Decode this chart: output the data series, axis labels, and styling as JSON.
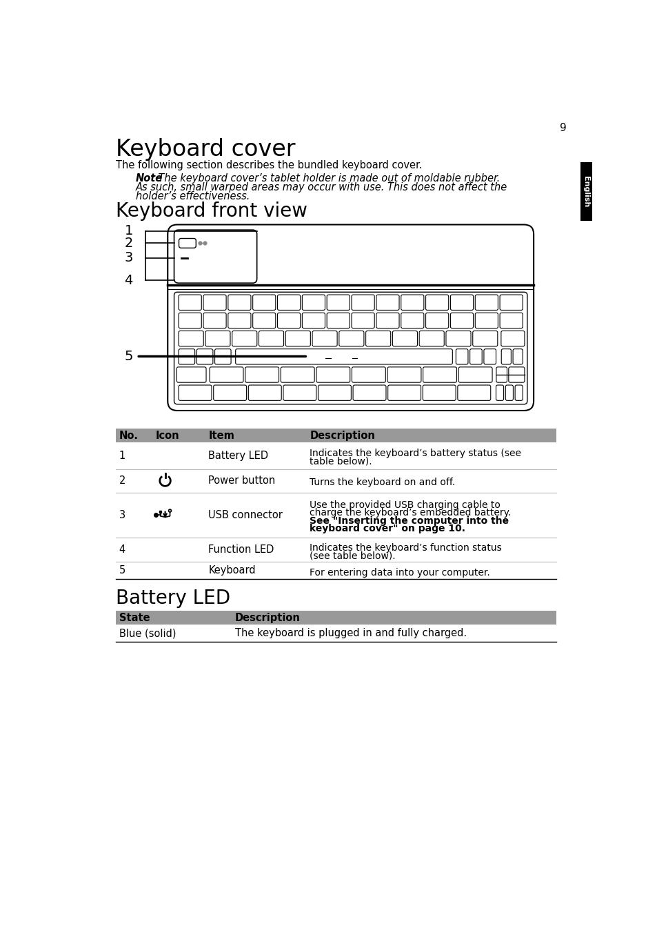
{
  "page_number": "9",
  "bg_color": "#ffffff",
  "sidebar_text": "English",
  "title1": "Keyboard cover",
  "body1": "The following section describes the bundled keyboard cover.",
  "note_bold": "Note",
  "note_rest": ": The keyboard cover’s tablet holder is made out of moldable rubber.\nAs such, small warped areas may occur with use. This does not affect the\nholder’s effectiveness.",
  "title2": "Keyboard front view",
  "table1_header": [
    "No.",
    "Icon",
    "Item",
    "Description"
  ],
  "table1_header_color": "#999999",
  "table1_rows": [
    {
      "no": "1",
      "icon": "",
      "item": "Battery LED",
      "desc_plain": "Indicates the keyboard’s battery status (see\ntable below).",
      "desc_bold": ""
    },
    {
      "no": "2",
      "icon": "power",
      "item": "Power button",
      "desc_plain": "Turns the keyboard on and off.",
      "desc_bold": ""
    },
    {
      "no": "3",
      "icon": "usb",
      "item": "USB connector",
      "desc_plain": "Use the provided USB charging cable to\ncharge the keyboard’s embedded battery.\n",
      "desc_bold": "See \"Inserting the computer into the\nkeyboard cover\" on page 10."
    },
    {
      "no": "4",
      "icon": "",
      "item": "Function LED",
      "desc_plain": "Indicates the keyboard’s function status\n(see table below).",
      "desc_bold": ""
    },
    {
      "no": "5",
      "icon": "",
      "item": "Keyboard",
      "desc_plain": "For entering data into your computer.",
      "desc_bold": ""
    }
  ],
  "title3": "Battery LED",
  "table2_header": [
    "State",
    "Description"
  ],
  "table2_header_color": "#999999",
  "table2_rows": [
    [
      "Blue (solid)",
      "The keyboard is plugged in and fully charged."
    ]
  ]
}
